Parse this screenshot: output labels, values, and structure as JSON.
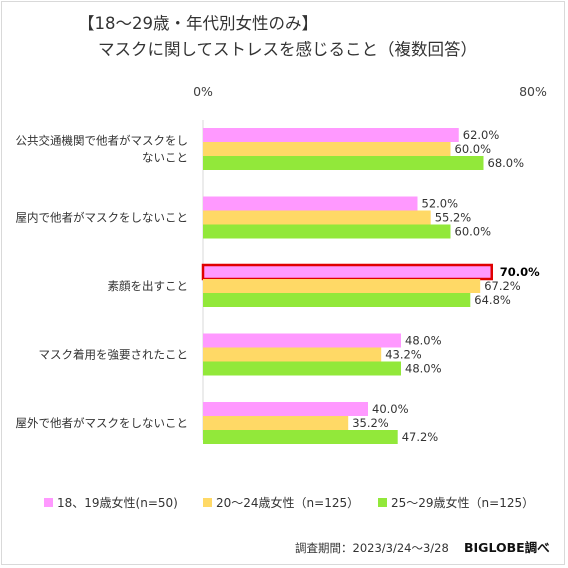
{
  "chart_data": {
    "type": "bar",
    "orientation": "horizontal",
    "title_line1": "【18～29歳・年代別女性のみ】",
    "title_line2": "マスクに関してストレスを感じること（複数回答）",
    "xlim": [
      0,
      80
    ],
    "x_tick_labels": [
      "0%",
      "80%"
    ],
    "categories": [
      [
        "公共交通機関で他者がマスクをし",
        "ないこと"
      ],
      [
        "屋内で他者がマスクをしないこと"
      ],
      [
        "素顔を出すこと"
      ],
      [
        "マスク着用を強要されたこと"
      ],
      [
        "屋外で他者がマスクをしないこと"
      ]
    ],
    "series": [
      {
        "name": "18、19歳女性(n=50)",
        "color": "#ff99ff",
        "values": [
          62.0,
          52.0,
          70.0,
          48.0,
          40.0
        ],
        "labels": [
          "62.0%",
          "52.0%",
          "70.0%",
          "48.0%",
          "40.0%"
        ]
      },
      {
        "name": "20～24歳女性（n=125）",
        "color": "#ffd966",
        "values": [
          60.0,
          55.2,
          67.2,
          43.2,
          35.2
        ],
        "labels": [
          "60.0%",
          "55.2%",
          "67.2%",
          "43.2%",
          "35.2%"
        ]
      },
      {
        "name": "25～29歳女性（n=125）",
        "color": "#92e83a",
        "values": [
          68.0,
          60.0,
          64.8,
          48.0,
          47.2
        ],
        "labels": [
          "68.0%",
          "60.0%",
          "64.8%",
          "48.0%",
          "47.2%"
        ]
      }
    ],
    "highlight": {
      "category_index": 2,
      "series_index": 0,
      "border_color": "#e00000"
    },
    "legend_position": "bottom",
    "grid": false
  },
  "footer": {
    "period": "調査期間：2023/3/24～3/28",
    "brand": "BIGLOBE調べ"
  }
}
